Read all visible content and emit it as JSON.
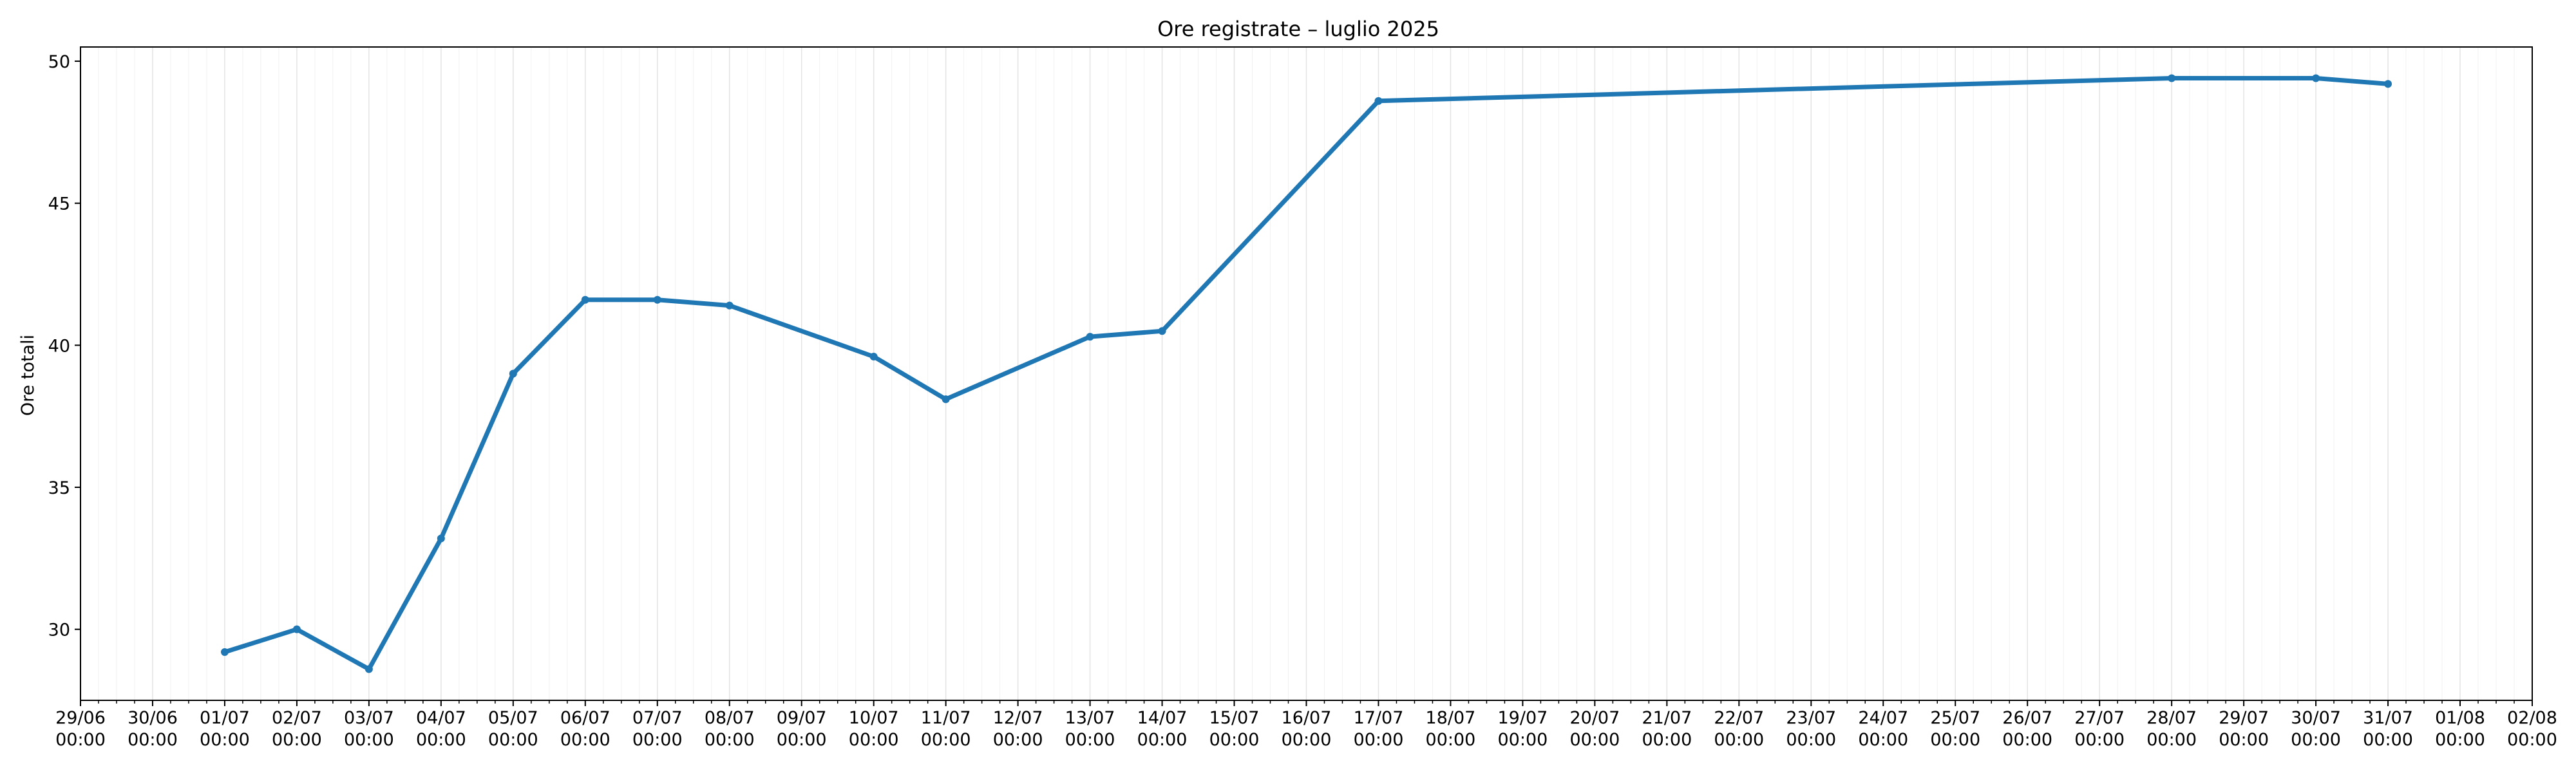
{
  "chart_data": {
    "type": "line",
    "title": "Ore registrate – luglio 2025",
    "xlabel": "",
    "ylabel": "Ore totali",
    "x_ticks": [
      {
        "date": "2025-06-29",
        "label": "29/06",
        "time": "00:00"
      },
      {
        "date": "2025-06-30",
        "label": "30/06",
        "time": "00:00"
      },
      {
        "date": "2025-07-01",
        "label": "01/07",
        "time": "00:00"
      },
      {
        "date": "2025-07-02",
        "label": "02/07",
        "time": "00:00"
      },
      {
        "date": "2025-07-03",
        "label": "03/07",
        "time": "00:00"
      },
      {
        "date": "2025-07-04",
        "label": "04/07",
        "time": "00:00"
      },
      {
        "date": "2025-07-05",
        "label": "05/07",
        "time": "00:00"
      },
      {
        "date": "2025-07-06",
        "label": "06/07",
        "time": "00:00"
      },
      {
        "date": "2025-07-07",
        "label": "07/07",
        "time": "00:00"
      },
      {
        "date": "2025-07-08",
        "label": "08/07",
        "time": "00:00"
      },
      {
        "date": "2025-07-09",
        "label": "09/07",
        "time": "00:00"
      },
      {
        "date": "2025-07-10",
        "label": "10/07",
        "time": "00:00"
      },
      {
        "date": "2025-07-11",
        "label": "11/07",
        "time": "00:00"
      },
      {
        "date": "2025-07-12",
        "label": "12/07",
        "time": "00:00"
      },
      {
        "date": "2025-07-13",
        "label": "13/07",
        "time": "00:00"
      },
      {
        "date": "2025-07-14",
        "label": "14/07",
        "time": "00:00"
      },
      {
        "date": "2025-07-15",
        "label": "15/07",
        "time": "00:00"
      },
      {
        "date": "2025-07-16",
        "label": "16/07",
        "time": "00:00"
      },
      {
        "date": "2025-07-17",
        "label": "17/07",
        "time": "00:00"
      },
      {
        "date": "2025-07-18",
        "label": "18/07",
        "time": "00:00"
      },
      {
        "date": "2025-07-19",
        "label": "19/07",
        "time": "00:00"
      },
      {
        "date": "2025-07-20",
        "label": "20/07",
        "time": "00:00"
      },
      {
        "date": "2025-07-21",
        "label": "21/07",
        "time": "00:00"
      },
      {
        "date": "2025-07-22",
        "label": "22/07",
        "time": "00:00"
      },
      {
        "date": "2025-07-23",
        "label": "23/07",
        "time": "00:00"
      },
      {
        "date": "2025-07-24",
        "label": "24/07",
        "time": "00:00"
      },
      {
        "date": "2025-07-25",
        "label": "25/07",
        "time": "00:00"
      },
      {
        "date": "2025-07-26",
        "label": "26/07",
        "time": "00:00"
      },
      {
        "date": "2025-07-27",
        "label": "27/07",
        "time": "00:00"
      },
      {
        "date": "2025-07-28",
        "label": "28/07",
        "time": "00:00"
      },
      {
        "date": "2025-07-29",
        "label": "29/07",
        "time": "00:00"
      },
      {
        "date": "2025-07-30",
        "label": "30/07",
        "time": "00:00"
      },
      {
        "date": "2025-07-31",
        "label": "31/07",
        "time": "00:00"
      },
      {
        "date": "2025-08-01",
        "label": "01/08",
        "time": "00:00"
      },
      {
        "date": "2025-08-02",
        "label": "02/08",
        "time": "00:00"
      }
    ],
    "y_ticks": [
      30,
      35,
      40,
      45,
      50
    ],
    "xlim": [
      "2025-06-29",
      "2025-08-02"
    ],
    "ylim": [
      27.5,
      50.5
    ],
    "grid": true,
    "series": [
      {
        "color": "#1f77b4",
        "points": [
          {
            "x": "2025-07-01",
            "y": 29.2
          },
          {
            "x": "2025-07-02",
            "y": 30.0
          },
          {
            "x": "2025-07-03",
            "y": 28.6
          },
          {
            "x": "2025-07-04",
            "y": 33.2
          },
          {
            "x": "2025-07-05",
            "y": 39.0
          },
          {
            "x": "2025-07-06",
            "y": 41.6
          },
          {
            "x": "2025-07-07",
            "y": 41.6
          },
          {
            "x": "2025-07-08",
            "y": 41.4
          },
          {
            "x": "2025-07-10",
            "y": 39.6
          },
          {
            "x": "2025-07-11",
            "y": 38.1
          },
          {
            "x": "2025-07-13",
            "y": 40.3
          },
          {
            "x": "2025-07-14",
            "y": 40.5
          },
          {
            "x": "2025-07-17",
            "y": 48.6
          },
          {
            "x": "2025-07-28",
            "y": 49.4
          },
          {
            "x": "2025-07-30",
            "y": 49.4
          },
          {
            "x": "2025-07-31",
            "y": 49.2
          }
        ]
      }
    ]
  }
}
